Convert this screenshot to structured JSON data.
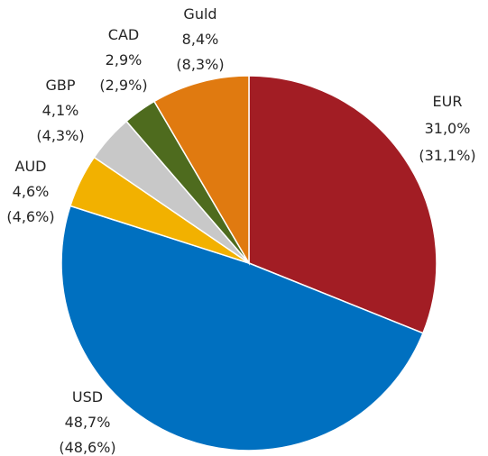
{
  "chart_data": {
    "type": "pie",
    "title": "",
    "start_angle_deg": 90,
    "direction": "clockwise",
    "slices": [
      {
        "label": "EUR",
        "value": 31.0,
        "value_label": "31,0%",
        "secondary_label": "(31,1%)",
        "color": "#A21D24"
      },
      {
        "label": "USD",
        "value": 48.7,
        "value_label": "48,7%",
        "secondary_label": "(48,6%)",
        "color": "#0070C0"
      },
      {
        "label": "AUD",
        "value": 4.6,
        "value_label": "4,6%",
        "secondary_label": "(4,6%)",
        "color": "#F2B100"
      },
      {
        "label": "GBP",
        "value": 4.1,
        "value_label": "4,1%",
        "secondary_label": "(4,3%)",
        "color": "#C8C8C8"
      },
      {
        "label": "CAD",
        "value": 2.9,
        "value_label": "2,9%",
        "secondary_label": "(2,9%)",
        "color": "#4E6B1E"
      },
      {
        "label": "Guld",
        "value": 8.4,
        "value_label": "8,4%",
        "secondary_label": "(8,3%)",
        "color": "#E07A10"
      }
    ]
  }
}
